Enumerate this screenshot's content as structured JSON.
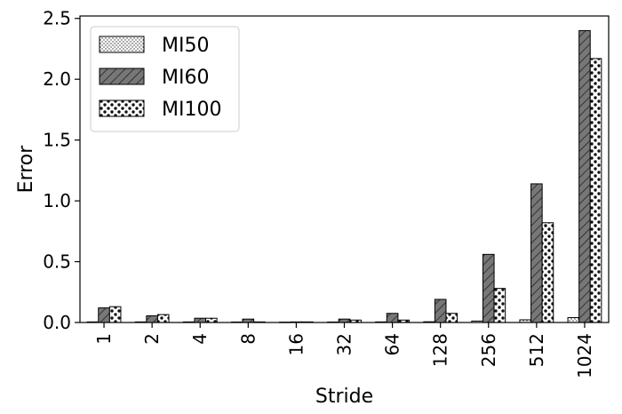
{
  "chart_data": {
    "type": "bar",
    "title": "",
    "xlabel": "Stride",
    "ylabel": "Error",
    "ylim": [
      0,
      2.52
    ],
    "yticks": [
      0.0,
      0.5,
      1.0,
      1.5,
      2.0,
      2.5
    ],
    "ytick_labels": [
      "0.0",
      "0.5",
      "1.0",
      "1.5",
      "2.0",
      "2.5"
    ],
    "categories": [
      "1",
      "2",
      "4",
      "8",
      "16",
      "32",
      "64",
      "128",
      "256",
      "512",
      "1024"
    ],
    "series": [
      {
        "name": "MI50",
        "pattern": "dots-fine",
        "fill": "#ffffff",
        "values": [
          0.005,
          0.005,
          0.005,
          0.004,
          0.003,
          0.004,
          0.005,
          0.006,
          0.012,
          0.022,
          0.04
        ]
      },
      {
        "name": "MI60",
        "pattern": "hatch",
        "fill": "#777777",
        "values": [
          0.12,
          0.055,
          0.035,
          0.028,
          0.005,
          0.028,
          0.075,
          0.19,
          0.56,
          1.14,
          2.4
        ]
      },
      {
        "name": "MI100",
        "pattern": "circles",
        "fill": "#ffffff",
        "values": [
          0.13,
          0.065,
          0.035,
          0.005,
          0.005,
          0.02,
          0.02,
          0.075,
          0.28,
          0.82,
          2.17
        ]
      }
    ],
    "legend_position": "top-left",
    "grid": false
  }
}
